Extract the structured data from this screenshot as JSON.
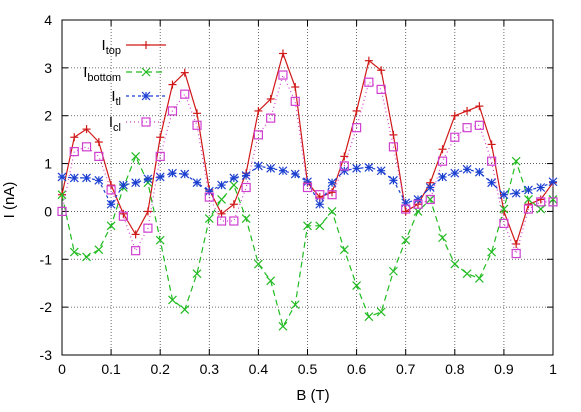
{
  "chart_data": {
    "type": "line",
    "xlabel": "B (T)",
    "ylabel": "I (nA)",
    "xlim": [
      0,
      1
    ],
    "ylim": [
      -3,
      4
    ],
    "xticks": [
      "0",
      "0.1",
      "0.2",
      "0.3",
      "0.4",
      "0.5",
      "0.6",
      "0.7",
      "0.8",
      "0.9",
      "1"
    ],
    "yticks": [
      "-3",
      "-2",
      "-1",
      "0",
      "1",
      "2",
      "3",
      "4"
    ],
    "grid": true,
    "legend_position": "top-left",
    "series": [
      {
        "name": "I",
        "sub": "top",
        "color": "#d01818",
        "dash": "",
        "marker": "plus",
        "x": [
          0,
          0.025,
          0.05,
          0.075,
          0.1,
          0.125,
          0.15,
          0.175,
          0.2,
          0.225,
          0.25,
          0.275,
          0.3,
          0.325,
          0.35,
          0.375,
          0.4,
          0.425,
          0.45,
          0.475,
          0.5,
          0.525,
          0.55,
          0.575,
          0.6,
          0.625,
          0.65,
          0.675,
          0.7,
          0.725,
          0.75,
          0.775,
          0.8,
          0.825,
          0.85,
          0.875,
          0.9,
          0.925,
          0.95,
          0.975,
          1
        ],
        "y": [
          0.35,
          1.55,
          1.72,
          1.45,
          0.55,
          -0.05,
          -0.48,
          0.0,
          1.55,
          2.65,
          2.9,
          2.05,
          0.45,
          -0.05,
          0.15,
          0.8,
          2.1,
          2.35,
          3.3,
          2.6,
          0.6,
          0.3,
          0.4,
          1.15,
          2.1,
          3.15,
          2.95,
          1.6,
          0.0,
          0.15,
          0.6,
          1.3,
          2.0,
          2.1,
          2.2,
          1.4,
          0.0,
          -0.68,
          0.15,
          0.25,
          0.6
        ]
      },
      {
        "name": "I",
        "sub": "bottom",
        "color": "#22bb22",
        "dash": "6,4",
        "marker": "x",
        "x": [
          0,
          0.025,
          0.05,
          0.075,
          0.1,
          0.125,
          0.15,
          0.175,
          0.2,
          0.225,
          0.25,
          0.275,
          0.3,
          0.325,
          0.35,
          0.375,
          0.4,
          0.425,
          0.45,
          0.475,
          0.5,
          0.525,
          0.55,
          0.575,
          0.6,
          0.625,
          0.65,
          0.675,
          0.7,
          0.725,
          0.75,
          0.775,
          0.8,
          0.825,
          0.85,
          0.875,
          0.9,
          0.925,
          0.95,
          0.975,
          1
        ],
        "y": [
          0.35,
          -0.85,
          -0.95,
          -0.8,
          -0.3,
          0.5,
          1.15,
          0.6,
          -0.6,
          -1.85,
          -2.05,
          -1.3,
          -0.15,
          0.25,
          0.55,
          -0.15,
          -1.1,
          -1.45,
          -2.4,
          -1.95,
          -0.3,
          -0.3,
          0.0,
          -0.8,
          -1.55,
          -2.2,
          -2.1,
          -1.25,
          -0.6,
          0.0,
          0.25,
          -0.55,
          -1.1,
          -1.3,
          -1.4,
          -0.85,
          0.05,
          1.05,
          0.25,
          0.05,
          0.25
        ]
      },
      {
        "name": "I",
        "sub": "tl",
        "color": "#1a3fd0",
        "dash": "3,3",
        "marker": "star",
        "x": [
          0,
          0.025,
          0.05,
          0.075,
          0.1,
          0.125,
          0.15,
          0.175,
          0.2,
          0.225,
          0.25,
          0.275,
          0.3,
          0.325,
          0.35,
          0.375,
          0.4,
          0.425,
          0.45,
          0.475,
          0.5,
          0.525,
          0.55,
          0.575,
          0.6,
          0.625,
          0.65,
          0.675,
          0.7,
          0.725,
          0.75,
          0.775,
          0.8,
          0.825,
          0.85,
          0.875,
          0.9,
          0.925,
          0.95,
          0.975,
          1
        ],
        "y": [
          0.72,
          0.7,
          0.7,
          0.65,
          0.15,
          0.55,
          0.6,
          0.68,
          0.72,
          0.8,
          0.78,
          0.6,
          0.42,
          0.55,
          0.7,
          0.75,
          0.95,
          0.9,
          0.85,
          0.78,
          0.62,
          0.15,
          0.6,
          0.85,
          0.9,
          0.92,
          0.85,
          0.65,
          0.18,
          0.25,
          0.5,
          0.72,
          0.8,
          0.88,
          0.82,
          0.6,
          0.35,
          0.38,
          0.45,
          0.5,
          0.62
        ]
      },
      {
        "name": "I",
        "sub": "cl",
        "color": "#d040d0",
        "dash": "1,3",
        "marker": "square",
        "x": [
          0,
          0.025,
          0.05,
          0.075,
          0.1,
          0.125,
          0.15,
          0.175,
          0.2,
          0.225,
          0.25,
          0.275,
          0.3,
          0.325,
          0.35,
          0.375,
          0.4,
          0.425,
          0.45,
          0.475,
          0.5,
          0.525,
          0.55,
          0.575,
          0.6,
          0.625,
          0.65,
          0.675,
          0.7,
          0.725,
          0.75,
          0.775,
          0.8,
          0.825,
          0.85,
          0.875,
          0.9,
          0.925,
          0.95,
          0.975,
          1
        ],
        "y": [
          0.0,
          1.25,
          1.35,
          1.15,
          0.45,
          -0.1,
          -0.82,
          -0.35,
          1.15,
          2.1,
          2.45,
          1.8,
          0.3,
          -0.2,
          -0.2,
          0.5,
          1.6,
          1.95,
          2.85,
          2.3,
          0.5,
          0.35,
          0.35,
          0.95,
          1.75,
          2.7,
          2.55,
          1.35,
          0.05,
          0.15,
          0.25,
          1.05,
          1.55,
          1.75,
          1.8,
          1.05,
          -0.25,
          -0.88,
          0.05,
          0.2,
          0.2
        ]
      }
    ]
  }
}
